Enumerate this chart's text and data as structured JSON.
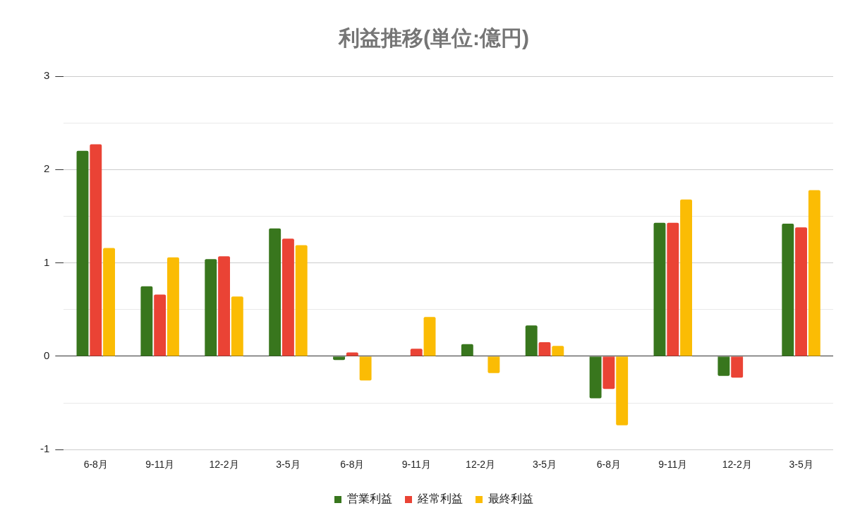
{
  "chart_data": {
    "type": "bar",
    "title": "利益推移(単位:億円)",
    "categories": [
      "6-8月",
      "9-11月",
      "12-2月",
      "3-5月",
      "6-8月",
      "9-11月",
      "12-2月",
      "3-5月",
      "6-8月",
      "9-11月",
      "12-2月",
      "3-5月"
    ],
    "series": [
      {
        "name": "営業利益",
        "color": "#38761d",
        "values": [
          2.2,
          0.75,
          1.04,
          1.37,
          -0.04,
          null,
          0.13,
          0.33,
          -0.45,
          1.43,
          -0.21,
          1.42
        ]
      },
      {
        "name": "経常利益",
        "color": "#ea4335",
        "values": [
          2.27,
          0.66,
          1.07,
          1.26,
          0.04,
          0.08,
          null,
          0.15,
          -0.35,
          1.43,
          -0.23,
          1.38
        ]
      },
      {
        "name": "最終利益",
        "color": "#fbbc04",
        "values": [
          1.16,
          1.06,
          0.64,
          1.19,
          -0.26,
          0.42,
          -0.18,
          0.11,
          -0.74,
          1.68,
          null,
          1.78
        ]
      }
    ],
    "ylim": [
      -1,
      3
    ],
    "yticks": [
      -1,
      {
        "value": -0.5,
        "label": null
      },
      0,
      {
        "value": 0.5,
        "label": null
      },
      1,
      {
        "value": 1.5,
        "label": null
      },
      2,
      {
        "value": 2.5,
        "label": null
      },
      3
    ],
    "grid": "y",
    "legend": "bottom"
  }
}
